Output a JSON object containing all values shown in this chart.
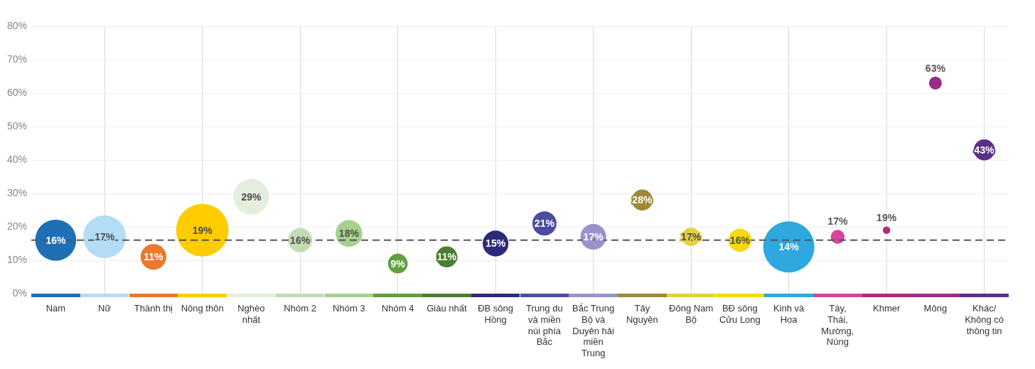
{
  "chart_data": {
    "type": "bubble",
    "categories": [
      "Nam",
      "Nữ",
      "Thành thị",
      "Nông thôn",
      "Nghèo nhất",
      "Nhóm 2",
      "Nhóm 3",
      "Nhóm 4",
      "Giàu nhất",
      "ĐB sông Hồng",
      "Trung du và miền núi phía Bắc",
      "Bắc Trung Bộ và Duyên hải miền Trung",
      "Tây Nguyên",
      "Đông Nam Bộ",
      "BĐ sông Cửu Long",
      "Kinh và Hoa",
      "Tày, Thái, Mường, Nùng",
      "Khmer",
      "Mông",
      "Khác/ Không có thông tin"
    ],
    "values": [
      16,
      17,
      11,
      19,
      29,
      16,
      18,
      9,
      11,
      15,
      21,
      17,
      28,
      17,
      16,
      14,
      17,
      19,
      63,
      43
    ],
    "sizes": [
      0.61,
      0.66,
      0.24,
      1,
      0.46,
      0.21,
      0.26,
      0.14,
      0.16,
      0.24,
      0.21,
      0.24,
      0.16,
      0.12,
      0.19,
      0.95,
      0.07,
      0.02,
      0.06,
      0.16
    ],
    "value_labels": [
      "16%",
      "17%",
      "11%",
      "19%",
      "29%",
      "16%",
      "18%",
      "9%",
      "11%",
      "15%",
      "21%",
      "17%",
      "28%",
      "17%",
      "16%",
      "14%",
      "17%",
      "19%",
      "63%",
      "43%"
    ],
    "colors": [
      "#1f6fb5",
      "#b3dcf5",
      "#e87a2e",
      "#ffcc00",
      "#e3efdc",
      "#c3dbb5",
      "#a6d08e",
      "#5fa13e",
      "#4a7f32",
      "#2e2a7a",
      "#4b4ba0",
      "#9a92cc",
      "#9c8a3a",
      "#e4d040",
      "#f5d90a",
      "#2ea8de",
      "#d6449a",
      "#b2287c",
      "#9b2b86",
      "#5b2f87"
    ],
    "ylim": [
      0,
      80
    ],
    "yticks": [
      {
        "value": 0,
        "label": "0%"
      },
      {
        "value": 10,
        "label": "10%"
      },
      {
        "value": 20,
        "label": "20%"
      },
      {
        "value": 30,
        "label": "30%"
      },
      {
        "value": 40,
        "label": "40%"
      },
      {
        "value": 50,
        "label": "50%"
      },
      {
        "value": 60,
        "label": "60%"
      },
      {
        "value": 70,
        "label": "70%"
      },
      {
        "value": 80,
        "label": "80%"
      }
    ],
    "ref_lines": [
      {
        "axis": "y",
        "value": 16,
        "color": "#555555",
        "line_style": "dashed"
      }
    ],
    "grid": true
  }
}
